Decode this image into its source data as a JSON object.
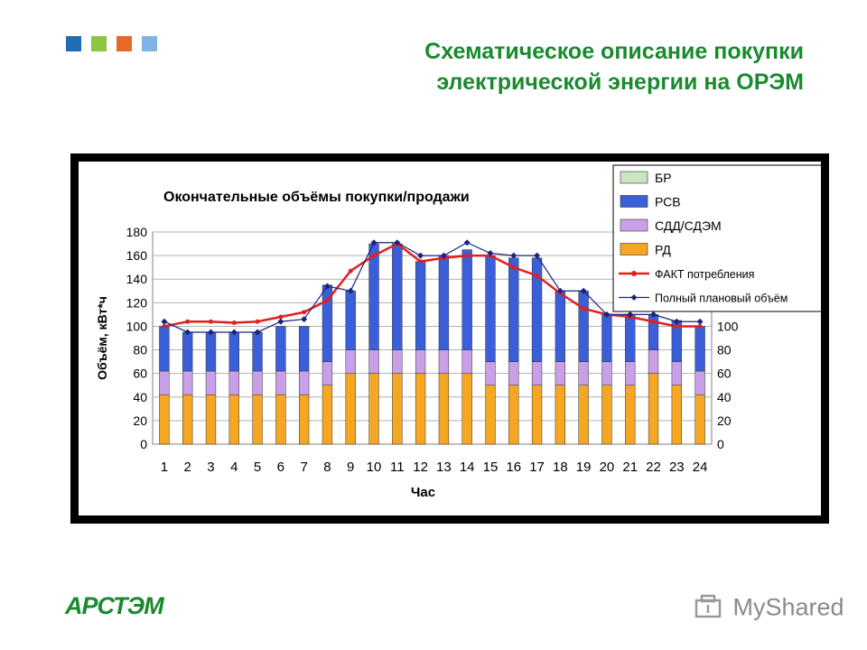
{
  "slide": {
    "title_line1": "Схематическое описание покупки",
    "title_line2": "электрической энергии на ОРЭМ",
    "squares": [
      "#1f6db5",
      "#8cc63f",
      "#e8682a",
      "#7fb2e5"
    ],
    "logo_text": "АРСТЭМ",
    "watermark_text": "MyShared"
  },
  "chart_data": {
    "type": "bar",
    "stacked": true,
    "title": "Окончательные объёмы покупки/продажи",
    "xlabel": "Час",
    "ylabel": "Объём, кВт*ч",
    "ylim": [
      0,
      180
    ],
    "yticks": [
      0,
      20,
      40,
      60,
      80,
      100,
      120,
      140,
      160,
      180
    ],
    "grid": true,
    "secondary_y_axis": true,
    "legend_position": "top-right",
    "categories": [
      "1",
      "2",
      "3",
      "4",
      "5",
      "6",
      "7",
      "8",
      "9",
      "10",
      "11",
      "12",
      "13",
      "14",
      "15",
      "16",
      "17",
      "18",
      "19",
      "20",
      "21",
      "22",
      "23",
      "24"
    ],
    "series": [
      {
        "name": "РД",
        "type": "bar",
        "color": "#f5a623",
        "values": [
          42,
          42,
          42,
          42,
          42,
          42,
          42,
          50,
          60,
          60,
          60,
          60,
          60,
          60,
          50,
          50,
          50,
          50,
          50,
          50,
          50,
          60,
          50,
          42
        ]
      },
      {
        "name": "СДД/СДЭМ",
        "type": "bar",
        "color": "#c9a0e8",
        "values": [
          20,
          20,
          20,
          20,
          20,
          20,
          20,
          20,
          20,
          20,
          20,
          20,
          20,
          20,
          20,
          20,
          20,
          20,
          20,
          20,
          20,
          20,
          20,
          20
        ]
      },
      {
        "name": "РСВ",
        "type": "bar",
        "color": "#3a5fd9",
        "values": [
          38,
          33,
          33,
          33,
          33,
          38,
          38,
          65,
          50,
          90,
          90,
          75,
          80,
          85,
          90,
          88,
          88,
          60,
          60,
          40,
          40,
          30,
          35,
          38
        ]
      },
      {
        "name": "БР",
        "type": "bar",
        "color": "#c8e6c0",
        "values": [
          0,
          0,
          0,
          0,
          0,
          0,
          0,
          0,
          0,
          0,
          0,
          0,
          0,
          0,
          0,
          0,
          0,
          0,
          0,
          0,
          0,
          0,
          0,
          0
        ]
      },
      {
        "name": "ФАКТ потребления",
        "type": "line",
        "color": "#e02020",
        "values": [
          100,
          104,
          104,
          103,
          104,
          108,
          112,
          122,
          147,
          160,
          170,
          155,
          158,
          160,
          160,
          150,
          143,
          128,
          115,
          110,
          108,
          104,
          100,
          100
        ]
      },
      {
        "name": "Полный плановый объём",
        "type": "line",
        "color": "#1a237e",
        "values": [
          104,
          95,
          95,
          95,
          95,
          104,
          106,
          134,
          130,
          171,
          171,
          160,
          160,
          171,
          162,
          160,
          160,
          130,
          130,
          110,
          110,
          110,
          104,
          104
        ]
      }
    ]
  }
}
